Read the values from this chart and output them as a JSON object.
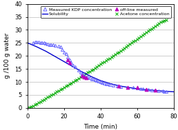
{
  "title": "",
  "xlabel": "Time (min)",
  "ylabel": "g /100 g water",
  "xlim": [
    0,
    80
  ],
  "ylim": [
    0,
    40
  ],
  "xticks": [
    0,
    20,
    40,
    60,
    80
  ],
  "yticks": [
    0,
    5,
    10,
    15,
    20,
    25,
    30,
    35,
    40
  ],
  "kdp_measured_x": [
    3,
    4,
    5,
    6,
    7,
    8,
    9,
    10,
    11,
    12,
    13,
    14,
    15,
    17,
    18,
    19,
    20,
    21,
    22,
    23,
    24,
    25,
    26,
    28,
    29,
    30,
    31,
    32,
    33,
    34,
    35,
    36,
    37,
    38,
    39,
    40,
    41,
    42,
    43,
    44,
    45,
    47,
    49,
    50,
    51,
    55,
    58,
    60,
    62,
    63,
    65,
    66,
    68,
    70,
    72,
    74,
    75,
    76
  ],
  "kdp_measured_y": [
    25.2,
    25.3,
    25.4,
    25.3,
    25.2,
    25.1,
    25.0,
    24.8,
    24.6,
    24.4,
    24.3,
    24.2,
    24.1,
    23.8,
    23.5,
    22.5,
    21.5,
    20.8,
    19.5,
    18.5,
    17.5,
    16.5,
    15.8,
    14.5,
    13.8,
    13.2,
    12.5,
    12.0,
    11.8,
    11.5,
    11.2,
    11.0,
    10.8,
    10.5,
    10.3,
    10.0,
    9.8,
    9.5,
    9.3,
    9.1,
    9.0,
    8.8,
    8.5,
    8.3,
    8.2,
    8.0,
    7.8,
    7.6,
    7.5,
    7.4,
    7.2,
    7.0,
    6.9,
    6.8,
    6.7,
    6.5,
    6.4,
    6.3
  ],
  "offline_x": [
    22,
    23,
    30,
    31,
    32,
    50,
    55,
    60,
    65,
    70
  ],
  "offline_y": [
    18.5,
    17.5,
    12.5,
    12.0,
    11.5,
    8.5,
    8.0,
    7.8,
    7.2,
    6.8
  ],
  "solubility_x": [
    0,
    5,
    10,
    15,
    20,
    25,
    30,
    35,
    40,
    45,
    50,
    55,
    60,
    65,
    70,
    75,
    80
  ],
  "solubility_y": [
    25.0,
    23.5,
    21.8,
    19.8,
    17.8,
    15.8,
    13.8,
    12.0,
    10.5,
    9.4,
    8.5,
    7.9,
    7.4,
    7.0,
    6.7,
    6.4,
    6.2
  ],
  "acetone_x": [
    0,
    1,
    2,
    3,
    4,
    5,
    6,
    7,
    8,
    9,
    10,
    11,
    12,
    13,
    14,
    15,
    16,
    17,
    18,
    19,
    20,
    21,
    22,
    23,
    24,
    25,
    26,
    27,
    28,
    29,
    30,
    31,
    32,
    33,
    34,
    35,
    36,
    37,
    38,
    39,
    40,
    41,
    42,
    43,
    44,
    45,
    46,
    47,
    48,
    49,
    50,
    51,
    52,
    53,
    54,
    55,
    56,
    57,
    58,
    59,
    60,
    61,
    62,
    63,
    64,
    65,
    66,
    67,
    68,
    69,
    70,
    71,
    72,
    73,
    74,
    75,
    76
  ],
  "acetone_y": [
    0.0,
    0.2,
    0.5,
    0.8,
    1.2,
    1.6,
    2.0,
    2.4,
    2.8,
    3.2,
    3.7,
    4.1,
    4.5,
    4.9,
    5.3,
    5.8,
    6.2,
    6.6,
    7.0,
    7.5,
    7.9,
    8.3,
    8.8,
    9.2,
    9.6,
    10.0,
    10.5,
    10.9,
    11.3,
    11.8,
    12.2,
    12.7,
    13.1,
    13.6,
    14.0,
    14.5,
    14.9,
    15.4,
    15.9,
    16.3,
    16.8,
    17.3,
    17.8,
    18.2,
    18.7,
    19.1,
    19.6,
    20.0,
    20.5,
    21.0,
    21.5,
    22.0,
    22.5,
    23.0,
    23.5,
    24.0,
    24.5,
    25.0,
    25.5,
    26.0,
    26.5,
    27.0,
    27.5,
    28.0,
    28.5,
    29.0,
    29.5,
    30.0,
    30.5,
    31.0,
    31.5,
    32.0,
    32.5,
    33.0,
    33.3,
    33.6,
    33.8
  ],
  "kdp_color": "#6666ff",
  "offline_color": "#bb00bb",
  "solubility_color": "#0000cc",
  "acetone_color": "#00aa00",
  "legend_labels": [
    "Measured KDP concentration",
    "off-line measured",
    "Solubility",
    "Acetone concentration"
  ]
}
